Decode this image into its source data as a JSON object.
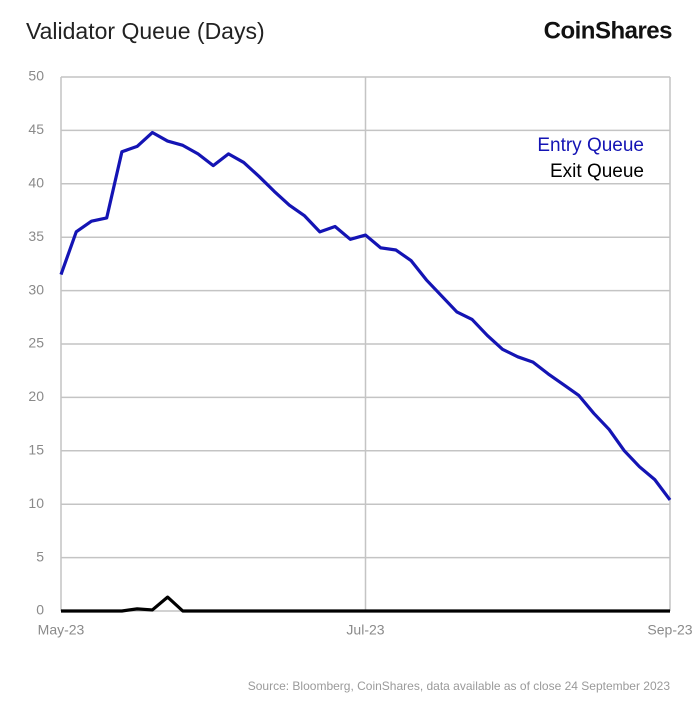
{
  "brand": "CoinShares",
  "chart_data": {
    "type": "line",
    "title": "Validator Queue (Days)",
    "source": "Source: Bloomberg, CoinShares, data available as of close 24 September 2023",
    "categories": [
      "May-23",
      null,
      null,
      null,
      null,
      null,
      null,
      null,
      null,
      null,
      null,
      null,
      null,
      null,
      null,
      null,
      null,
      null,
      null,
      null,
      "Jul-23",
      null,
      null,
      null,
      null,
      null,
      null,
      null,
      null,
      null,
      null,
      null,
      null,
      null,
      null,
      null,
      null,
      null,
      null,
      null,
      "Sep-23"
    ],
    "series": [
      {
        "name": "Entry Queue",
        "color": "#1414b4",
        "values": [
          31.5,
          35.5,
          36.5,
          36.8,
          43,
          43.5,
          44.8,
          44.0,
          43.6,
          42.8,
          41.7,
          42.8,
          42.0,
          40.7,
          39.3,
          38.0,
          37.0,
          35.5,
          36.0,
          34.8,
          35.2,
          34.0,
          33.8,
          32.8,
          31.0,
          29.5,
          28.0,
          27.3,
          25.8,
          24.5,
          23.8,
          23.3,
          22.2,
          21.2,
          20.2,
          18.5,
          17.0,
          15.0,
          13.5,
          12.3,
          10.4
        ]
      },
      {
        "name": "Exit Queue",
        "color": "#000000",
        "values": [
          0,
          0,
          0,
          0,
          0,
          0.2,
          0.1,
          1.3,
          0,
          0,
          0,
          0,
          0,
          0,
          0,
          0,
          0,
          0,
          0,
          0,
          0,
          0,
          0,
          0,
          0,
          0,
          0,
          0,
          0,
          0,
          0,
          0,
          0,
          0,
          0,
          0,
          0,
          0,
          0,
          0,
          0
        ]
      }
    ],
    "ylim": [
      0,
      50
    ],
    "yticks": [
      0,
      5,
      10,
      15,
      20,
      25,
      30,
      35,
      40,
      45,
      50
    ],
    "grid": true,
    "legend": "top-right"
  }
}
